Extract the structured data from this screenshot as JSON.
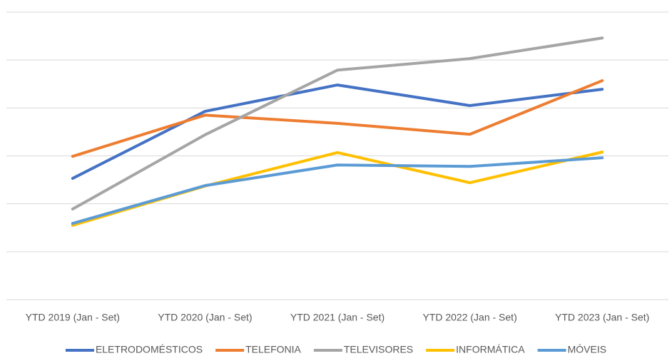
{
  "chart_data": {
    "type": "line",
    "categories": [
      "YTD 2019 (Jan - Set)",
      "YTD 2020 (Jan - Set)",
      "YTD 2021 (Jan - Set)",
      "YTD 2022 (Jan - Set)",
      "YTD 2023 (Jan - Set)"
    ],
    "series": [
      {
        "name": "ELETRODOMÉSTICOS",
        "color": "#4472c4",
        "values": [
          2.53,
          3.93,
          4.48,
          4.05,
          4.39
        ]
      },
      {
        "name": "TELEFONIA",
        "color": "#ed7d31",
        "values": [
          2.99,
          3.85,
          3.68,
          3.45,
          4.57
        ]
      },
      {
        "name": "TELEVISORES",
        "color": "#a5a5a5",
        "values": [
          1.89,
          3.44,
          4.79,
          5.03,
          5.46
        ]
      },
      {
        "name": "INFORMÁTICA",
        "color": "#ffc000",
        "values": [
          1.55,
          2.37,
          3.07,
          2.44,
          3.08
        ]
      },
      {
        "name": "MÓVEIS",
        "color": "#5b9bd5",
        "values": [
          1.59,
          2.38,
          2.81,
          2.78,
          2.96
        ]
      }
    ],
    "ylim": [
      0,
      6
    ],
    "yticks": [
      0,
      1,
      2,
      3,
      4,
      5,
      6
    ],
    "grid": true,
    "legend": "bottom"
  }
}
